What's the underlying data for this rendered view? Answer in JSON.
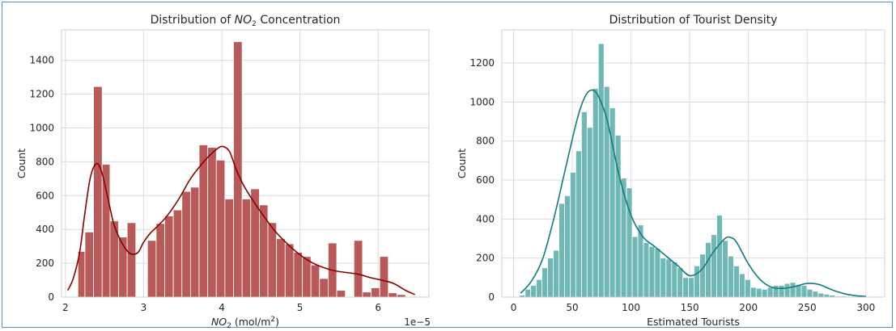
{
  "chart_data": [
    {
      "type": "histogram",
      "title": "Distribution of NO2 Concentration",
      "title_parts": [
        "Distribution of ",
        "NO",
        "2",
        " Concentration"
      ],
      "xlabel_parts": [
        "NO",
        "2",
        " (mol/m",
        "2",
        ")"
      ],
      "ylabel": "Count",
      "x_offset_text": "1e−5",
      "xlim": [
        1.95,
        6.65
      ],
      "ylim": [
        0,
        1580
      ],
      "xticks": [
        2,
        3,
        4,
        5,
        6
      ],
      "xtick_labels": [
        "2",
        "3",
        "4",
        "5",
        "6"
      ],
      "yticks": [
        0,
        200,
        400,
        600,
        800,
        1000,
        1200,
        1400
      ],
      "grid": true,
      "bar_color": "#b85a5a",
      "line_color": "#8b0000",
      "bins": [
        {
          "x0": 2.16,
          "x1": 2.25,
          "count": 270
        },
        {
          "x0": 2.25,
          "x1": 2.36,
          "count": 385
        },
        {
          "x0": 2.36,
          "x1": 2.47,
          "count": 1245
        },
        {
          "x0": 2.47,
          "x1": 2.57,
          "count": 785
        },
        {
          "x0": 2.57,
          "x1": 2.68,
          "count": 450
        },
        {
          "x0": 2.68,
          "x1": 2.79,
          "count": 355
        },
        {
          "x0": 2.79,
          "x1": 2.9,
          "count": 440
        },
        {
          "x0": 3.05,
          "x1": 3.16,
          "count": 335
        },
        {
          "x0": 3.16,
          "x1": 3.27,
          "count": 435
        },
        {
          "x0": 3.27,
          "x1": 3.38,
          "count": 480
        },
        {
          "x0": 3.38,
          "x1": 3.49,
          "count": 515
        },
        {
          "x0": 3.49,
          "x1": 3.6,
          "count": 625
        },
        {
          "x0": 3.6,
          "x1": 3.71,
          "count": 650
        },
        {
          "x0": 3.71,
          "x1": 3.82,
          "count": 900
        },
        {
          "x0": 3.82,
          "x1": 3.93,
          "count": 885
        },
        {
          "x0": 3.93,
          "x1": 4.04,
          "count": 810
        },
        {
          "x0": 4.04,
          "x1": 4.15,
          "count": 580
        },
        {
          "x0": 4.15,
          "x1": 4.26,
          "count": 1510
        },
        {
          "x0": 4.26,
          "x1": 4.37,
          "count": 580
        },
        {
          "x0": 4.37,
          "x1": 4.48,
          "count": 640
        },
        {
          "x0": 4.48,
          "x1": 4.59,
          "count": 545
        },
        {
          "x0": 4.59,
          "x1": 4.7,
          "count": 440
        },
        {
          "x0": 4.7,
          "x1": 4.81,
          "count": 345
        },
        {
          "x0": 4.81,
          "x1": 4.92,
          "count": 315
        },
        {
          "x0": 4.92,
          "x1": 5.03,
          "count": 265
        },
        {
          "x0": 5.03,
          "x1": 5.14,
          "count": 240
        },
        {
          "x0": 5.14,
          "x1": 5.25,
          "count": 190
        },
        {
          "x0": 5.25,
          "x1": 5.36,
          "count": 110
        },
        {
          "x0": 5.36,
          "x1": 5.47,
          "count": 320
        },
        {
          "x0": 5.47,
          "x1": 5.58,
          "count": 40
        },
        {
          "x0": 5.69,
          "x1": 5.8,
          "count": 335
        },
        {
          "x0": 5.8,
          "x1": 5.91,
          "count": 30
        },
        {
          "x0": 5.91,
          "x1": 6.02,
          "count": 55
        },
        {
          "x0": 6.02,
          "x1": 6.13,
          "count": 240
        },
        {
          "x0": 6.13,
          "x1": 6.24,
          "count": 25
        },
        {
          "x0": 6.24,
          "x1": 6.35,
          "count": 15
        }
      ],
      "kde": {
        "x": [
          2.03,
          2.1,
          2.18,
          2.25,
          2.32,
          2.4,
          2.47,
          2.55,
          2.62,
          2.7,
          2.77,
          2.84,
          2.93,
          3.0,
          3.08,
          3.18,
          3.3,
          3.45,
          3.6,
          3.75,
          3.85,
          3.95,
          4.02,
          4.1,
          4.18,
          4.28,
          4.4,
          4.55,
          4.7,
          4.85,
          5.0,
          5.15,
          5.3,
          5.45,
          5.6,
          5.75,
          5.9,
          6.05,
          6.2,
          6.35,
          6.47
        ],
        "y": [
          40,
          110,
          260,
          500,
          710,
          790,
          730,
          570,
          430,
          340,
          285,
          255,
          265,
          325,
          375,
          420,
          480,
          580,
          700,
          790,
          840,
          880,
          890,
          860,
          760,
          660,
          570,
          470,
          380,
          310,
          250,
          205,
          175,
          155,
          145,
          135,
          115,
          100,
          80,
          40,
          15
        ]
      }
    },
    {
      "type": "histogram",
      "title": "Distribution of Tourist Density",
      "xlabel": "Estimated Tourists",
      "ylabel": "Count",
      "xlim": [
        -10,
        316
      ],
      "ylim": [
        0,
        1370
      ],
      "xticks": [
        0,
        50,
        100,
        150,
        200,
        250,
        300
      ],
      "xtick_labels": [
        "0",
        "50",
        "100",
        "150",
        "200",
        "250",
        "300"
      ],
      "yticks": [
        0,
        200,
        400,
        600,
        800,
        1000,
        1200
      ],
      "grid": true,
      "bar_color": "#6fb8b6",
      "line_color": "#137b7b",
      "bin_start": 5,
      "bin_width": 4.8,
      "counts": [
        10,
        40,
        60,
        90,
        150,
        200,
        240,
        480,
        520,
        640,
        750,
        950,
        870,
        1070,
        1300,
        1080,
        970,
        830,
        610,
        560,
        310,
        370,
        280,
        260,
        250,
        200,
        195,
        180,
        150,
        100,
        100,
        160,
        220,
        280,
        320,
        420,
        290,
        210,
        160,
        120,
        90,
        50,
        45,
        40,
        50,
        60,
        60,
        70,
        75,
        65,
        60,
        40,
        30,
        20,
        15,
        10,
        5,
        5,
        3,
        2
      ],
      "kde": {
        "x": [
          6,
          15,
          25,
          35,
          45,
          55,
          62,
          68,
          73,
          80,
          90,
          100,
          110,
          120,
          130,
          140,
          150,
          160,
          170,
          180,
          185,
          190,
          200,
          210,
          220,
          230,
          240,
          250,
          260,
          270,
          280,
          290,
          300
        ],
        "y": [
          20,
          80,
          200,
          420,
          680,
          930,
          1040,
          1060,
          1020,
          900,
          620,
          420,
          310,
          260,
          210,
          160,
          110,
          140,
          230,
          300,
          305,
          280,
          170,
          90,
          50,
          45,
          55,
          70,
          65,
          40,
          20,
          8,
          4
        ]
      }
    }
  ]
}
